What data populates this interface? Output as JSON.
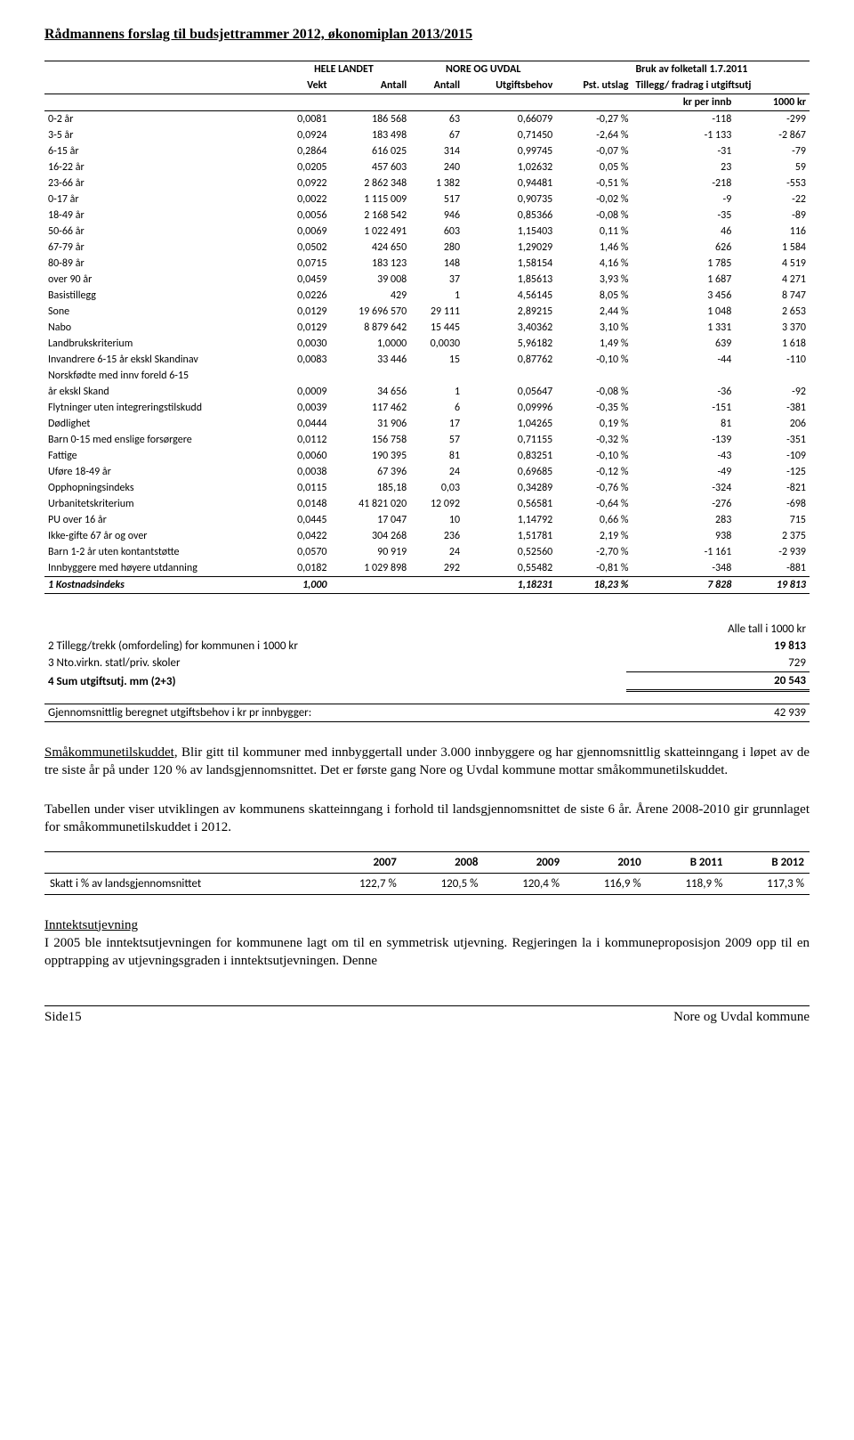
{
  "header": "Rådmannens forslag til budsjettrammer 2012, økonomiplan 2013/2015",
  "table": {
    "super": {
      "c1": "HELE LANDET",
      "c2": "NORE OG UVDAL",
      "c3": "Bruk av folketall 1.7.2011"
    },
    "head": {
      "h1": "Vekt",
      "h2": "Antall",
      "h3": "Antall",
      "h4": "Utgiftsbehov",
      "h5": "Pst. utslag",
      "h6": "Tillegg/ fradrag i utgiftsutj"
    },
    "subhead": {
      "s1": "kr per innb",
      "s2": "1000 kr"
    },
    "rows": [
      {
        "label": "0-2 år",
        "v1": "0,0081",
        "v2": "186 568",
        "v3": "63",
        "v4": "0,66079",
        "v5": "-0,27 %",
        "v6": "-118",
        "v7": "-299"
      },
      {
        "label": "3-5 år",
        "v1": "0,0924",
        "v2": "183 498",
        "v3": "67",
        "v4": "0,71450",
        "v5": "-2,64 %",
        "v6": "-1 133",
        "v7": "-2 867"
      },
      {
        "label": "6-15 år",
        "v1": "0,2864",
        "v2": "616 025",
        "v3": "314",
        "v4": "0,99745",
        "v5": "-0,07 %",
        "v6": "-31",
        "v7": "-79"
      },
      {
        "label": "16-22 år",
        "v1": "0,0205",
        "v2": "457 603",
        "v3": "240",
        "v4": "1,02632",
        "v5": "0,05 %",
        "v6": "23",
        "v7": "59"
      },
      {
        "label": "23-66 år",
        "v1": "0,0922",
        "v2": "2 862 348",
        "v3": "1 382",
        "v4": "0,94481",
        "v5": "-0,51 %",
        "v6": "-218",
        "v7": "-553"
      },
      {
        "label": "0-17 år",
        "v1": "0,0022",
        "v2": "1 115 009",
        "v3": "517",
        "v4": "0,90735",
        "v5": "-0,02 %",
        "v6": "-9",
        "v7": "-22"
      },
      {
        "label": "18-49 år",
        "v1": "0,0056",
        "v2": "2 168 542",
        "v3": "946",
        "v4": "0,85366",
        "v5": "-0,08 %",
        "v6": "-35",
        "v7": "-89"
      },
      {
        "label": "50-66 år",
        "v1": "0,0069",
        "v2": "1 022 491",
        "v3": "603",
        "v4": "1,15403",
        "v5": "0,11 %",
        "v6": "46",
        "v7": "116"
      },
      {
        "label": "67-79 år",
        "v1": "0,0502",
        "v2": "424 650",
        "v3": "280",
        "v4": "1,29029",
        "v5": "1,46 %",
        "v6": "626",
        "v7": "1 584"
      },
      {
        "label": "80-89 år",
        "v1": "0,0715",
        "v2": "183 123",
        "v3": "148",
        "v4": "1,58154",
        "v5": "4,16 %",
        "v6": "1 785",
        "v7": "4 519"
      },
      {
        "label": "over 90 år",
        "v1": "0,0459",
        "v2": "39 008",
        "v3": "37",
        "v4": "1,85613",
        "v5": "3,93 %",
        "v6": "1 687",
        "v7": "4 271"
      },
      {
        "label": "Basistillegg",
        "v1": "0,0226",
        "v2": "429",
        "v3": "1",
        "v4": "4,56145",
        "v5": "8,05 %",
        "v6": "3 456",
        "v7": "8 747"
      },
      {
        "label": "Sone",
        "v1": "0,0129",
        "v2": "19 696 570",
        "v3": "29 111",
        "v4": "2,89215",
        "v5": "2,44 %",
        "v6": "1 048",
        "v7": "2 653"
      },
      {
        "label": "Nabo",
        "v1": "0,0129",
        "v2": "8 879 642",
        "v3": "15 445",
        "v4": "3,40362",
        "v5": "3,10 %",
        "v6": "1 331",
        "v7": "3 370"
      },
      {
        "label": "Landbrukskriterium",
        "v1": "0,0030",
        "v2": "1,0000",
        "v3": "0,0030",
        "v4": "5,96182",
        "v5": "1,49 %",
        "v6": "639",
        "v7": "1 618"
      },
      {
        "label": "Invandrere 6-15 år ekskl Skandinav",
        "v1": "0,0083",
        "v2": "33 446",
        "v3": "15",
        "v4": "0,87762",
        "v5": "-0,10 %",
        "v6": "-44",
        "v7": "-110"
      },
      {
        "label": "Norskfødte med innv foreld 6-15",
        "v1": "",
        "v2": "",
        "v3": "",
        "v4": "",
        "v5": "",
        "v6": "",
        "v7": ""
      },
      {
        "label": "år ekskl Skand",
        "v1": "0,0009",
        "v2": "34 656",
        "v3": "1",
        "v4": "0,05647",
        "v5": "-0,08 %",
        "v6": "-36",
        "v7": "-92"
      },
      {
        "label": "Flytninger uten integreringstilskudd",
        "v1": "0,0039",
        "v2": "117 462",
        "v3": "6",
        "v4": "0,09996",
        "v5": "-0,35 %",
        "v6": "-151",
        "v7": "-381"
      },
      {
        "label": "Dødlighet",
        "v1": "0,0444",
        "v2": "31 906",
        "v3": "17",
        "v4": "1,04265",
        "v5": "0,19 %",
        "v6": "81",
        "v7": "206"
      },
      {
        "label": "Barn 0-15 med enslige forsørgere",
        "v1": "0,0112",
        "v2": "156 758",
        "v3": "57",
        "v4": "0,71155",
        "v5": "-0,32 %",
        "v6": "-139",
        "v7": "-351"
      },
      {
        "label": "Fattige",
        "v1": "0,0060",
        "v2": "190 395",
        "v3": "81",
        "v4": "0,83251",
        "v5": "-0,10 %",
        "v6": "-43",
        "v7": "-109"
      },
      {
        "label": "Uføre 18-49 år",
        "v1": "0,0038",
        "v2": "67 396",
        "v3": "24",
        "v4": "0,69685",
        "v5": "-0,12 %",
        "v6": "-49",
        "v7": "-125"
      },
      {
        "label": "Opphopningsindeks",
        "v1": "0,0115",
        "v2": "185,18",
        "v3": "0,03",
        "v4": "0,34289",
        "v5": "-0,76 %",
        "v6": "-324",
        "v7": "-821"
      },
      {
        "label": "Urbanitetskriterium",
        "v1": "0,0148",
        "v2": "41 821 020",
        "v3": "12 092",
        "v4": "0,56581",
        "v5": "-0,64 %",
        "v6": "-276",
        "v7": "-698"
      },
      {
        "label": "PU over 16 år",
        "v1": "0,0445",
        "v2": "17 047",
        "v3": "10",
        "v4": "1,14792",
        "v5": "0,66 %",
        "v6": "283",
        "v7": "715"
      },
      {
        "label": "Ikke-gifte 67 år og over",
        "v1": "0,0422",
        "v2": "304 268",
        "v3": "236",
        "v4": "1,51781",
        "v5": "2,19 %",
        "v6": "938",
        "v7": "2 375"
      },
      {
        "label": "Barn 1-2 år uten kontantstøtte",
        "v1": "0,0570",
        "v2": "90 919",
        "v3": "24",
        "v4": "0,52560",
        "v5": "-2,70 %",
        "v6": "-1 161",
        "v7": "-2 939"
      },
      {
        "label": "Innbyggere med høyere utdanning",
        "v1": "0,0182",
        "v2": "1 029 898",
        "v3": "292",
        "v4": "0,55482",
        "v5": "-0,81 %",
        "v6": "-348",
        "v7": "-881"
      }
    ],
    "total": {
      "label": "1 Kostnadsindeks",
      "v1": "1,000",
      "v2": "",
      "v3": "",
      "v4": "1,18231",
      "v5": "18,23 %",
      "v6": "7 828",
      "v7": "19 813"
    }
  },
  "summary": {
    "title_right": "Alle tall i 1000 kr",
    "r2": {
      "label": "2 Tillegg/trekk (omfordeling) for kommunen i 1000 kr",
      "val": "19 813"
    },
    "r3": {
      "label": "3 Nto.virkn. statl/priv. skoler",
      "val": "729"
    },
    "r4": {
      "label": "4 Sum utgiftsutj. mm (2+3)",
      "val": "20 543"
    },
    "r5": {
      "label": "Gjennomsnittlig beregnet utgiftsbehov i kr pr innbygger:",
      "val": "42 939"
    }
  },
  "para1": {
    "lead": "Småkommunetilskuddet,",
    "rest": " Blir gitt til kommuner med innbyggertall under 3.000 innbyggere og har gjennomsnittlig skatteinngang i løpet av de tre siste år på under 120 % av landsgjennomsnittet. Det er første gang Nore og Uvdal kommune mottar småkommunetilskuddet."
  },
  "para2": "Tabellen under viser utviklingen av kommunens skatteinngang i forhold til landsgjennomsnittet de siste 6 år. Årene 2008-2010 gir grunnlaget for småkommunetilskuddet i 2012.",
  "skatt": {
    "head": [
      "",
      "2007",
      "2008",
      "2009",
      "2010",
      "B 2011",
      "B 2012"
    ],
    "row": {
      "label": "Skatt i % av landsgjennomsnittet",
      "v": [
        "122,7 %",
        "120,5 %",
        "120,4 %",
        "116,9 %",
        "118,9 %",
        "117,3 %"
      ]
    }
  },
  "para3": {
    "lead": "Inntektsutjevning",
    "rest": "I 2005 ble inntektsutjevningen for kommunene lagt om til en symmetrisk utjevning. Regjeringen la i kommuneproposisjon 2009 opp til en opptrapping av utjevningsgraden i inntektsutjevningen. Denne"
  },
  "footer": {
    "left": "Side15",
    "right": "Nore og Uvdal kommune"
  }
}
